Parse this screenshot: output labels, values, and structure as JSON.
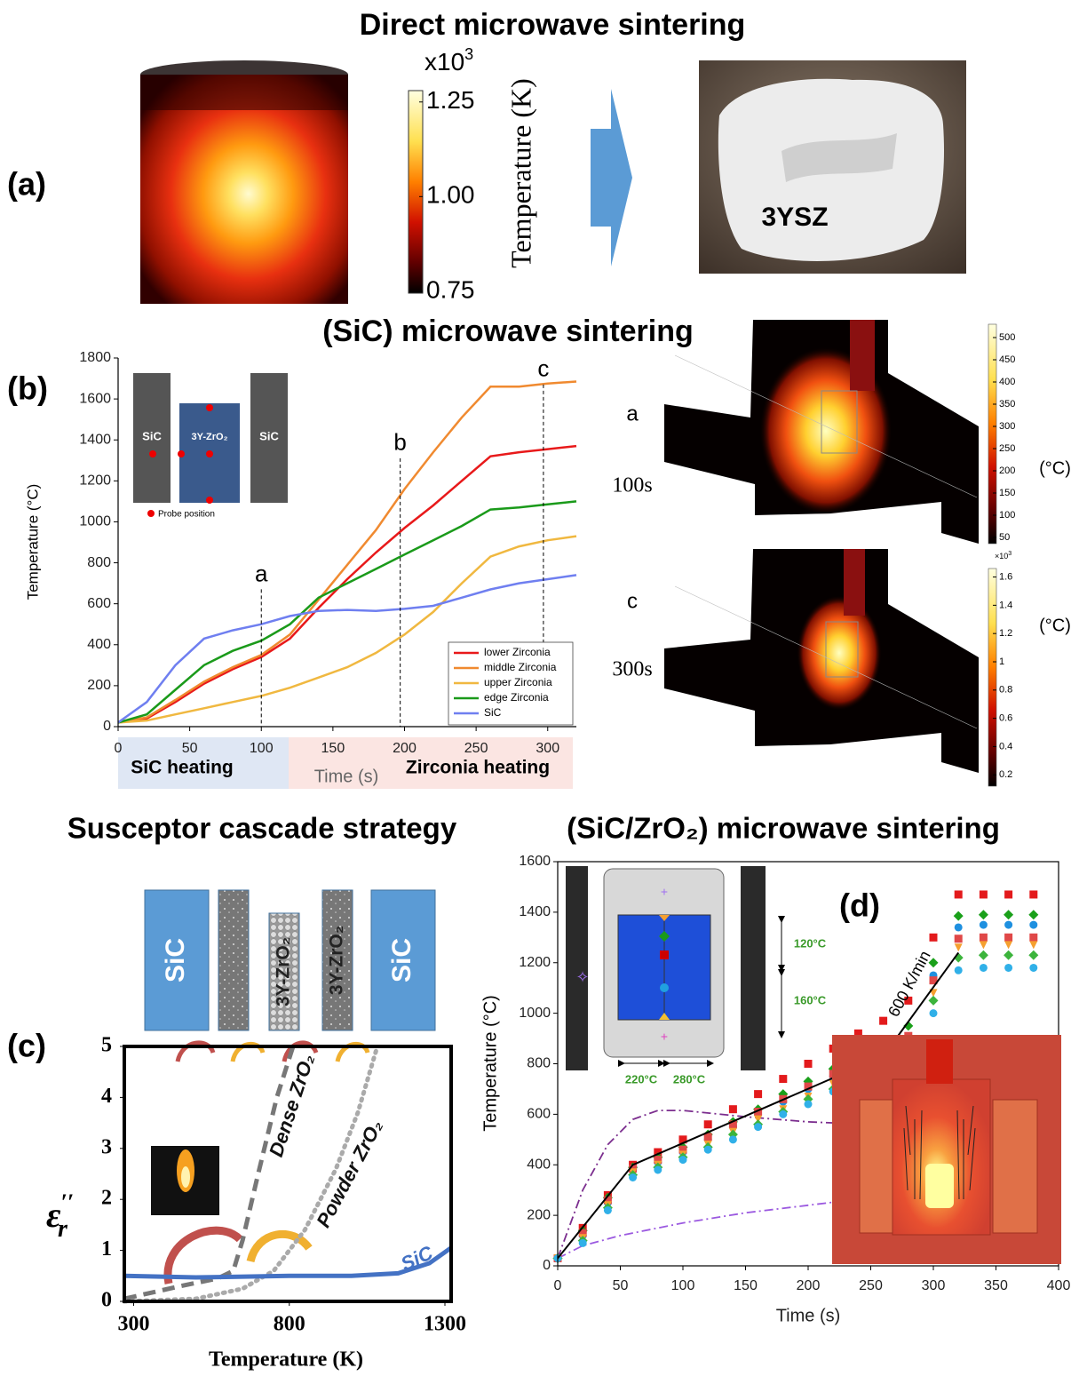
{
  "titles": {
    "direct": "Direct microwave  sintering",
    "sic": "(SiC) microwave  sintering",
    "cascade": "Susceptor cascade strategy",
    "sic_zro2": "(SiC/ZrO₂) microwave  sintering"
  },
  "panel_a": {
    "label": "(a)",
    "sample": "3YSZ",
    "colorbar": {
      "multiplier": "x10",
      "multiplier_exp": "3",
      "label": "Temperature (K)",
      "lim": [
        0.745,
        1.28
      ],
      "ticks": [
        1.25,
        {
          "value": 1,
          "label": "1.00"
        },
        0.75
      ]
    }
  },
  "panel_b": {
    "label": "(b)",
    "phases": [
      "SiC heating",
      "Zirconia heating"
    ],
    "inset": {
      "left": "SiC",
      "middle": "3Y-ZrO₂",
      "right": "SiC",
      "probe": "Probe position"
    },
    "sims": [
      {
        "letter": "a",
        "time": "100s",
        "unit": "(°C)",
        "colorbar": {
          "lim": [
            36,
            530
          ],
          "ticks": [
            50,
            100,
            150,
            200,
            250,
            300,
            350,
            400,
            450,
            500
          ]
        }
      },
      {
        "letter": "c",
        "time": "300s",
        "unit": "(°C)",
        "colorbar": {
          "multiplier": "×10",
          "multiplier_exp": "3",
          "lim": [
            0.12,
            1.66
          ],
          "ticks": [
            0.2,
            0.4,
            0.6,
            0.8,
            1,
            1.2,
            1.4,
            1.6
          ]
        }
      }
    ]
  },
  "panel_c": {
    "label": "(c)",
    "blocks": [
      "SiC",
      "3Y-ZrO₂",
      "3Y-ZrO₂",
      "SiC"
    ]
  },
  "panel_d": {
    "label": "(d)",
    "inset": [
      "120°C",
      "160°C",
      "220°C",
      "280°C"
    ],
    "rate": "600 K/min"
  },
  "chart_data": [
    {
      "type": "line",
      "xlabel": "Time (s)",
      "ylabel": "Temperature (°C)",
      "xlim": [
        0,
        320
      ],
      "ylim": [
        0,
        1800
      ],
      "xticks": [
        0,
        50,
        100,
        150,
        200,
        250,
        300
      ],
      "yticks": [
        0,
        200,
        400,
        600,
        800,
        1000,
        1200,
        1400,
        1600,
        1800
      ],
      "legend": "lower right",
      "x": [
        0,
        20,
        40,
        60,
        80,
        100,
        120,
        140,
        160,
        180,
        200,
        220,
        240,
        260,
        280,
        300,
        320
      ],
      "series": [
        {
          "name": "lower Zirconia",
          "color": "#e8191a",
          "line_style": "solid",
          "values": [
            20,
            40,
            120,
            210,
            280,
            340,
            430,
            580,
            720,
            850,
            970,
            1080,
            1200,
            1320,
            1340,
            1355,
            1370
          ]
        },
        {
          "name": "middle Zirconia",
          "color": "#f08a30",
          "line_style": "solid",
          "values": [
            20,
            45,
            130,
            220,
            290,
            350,
            450,
            620,
            790,
            960,
            1160,
            1340,
            1510,
            1660,
            1660,
            1675,
            1685
          ]
        },
        {
          "name": "upper Zirconia",
          "color": "#f0b840",
          "line_style": "solid",
          "values": [
            20,
            30,
            60,
            90,
            120,
            150,
            190,
            240,
            290,
            360,
            450,
            560,
            700,
            830,
            880,
            910,
            930
          ]
        },
        {
          "name": "edge Zirconia",
          "color": "#1a9a1a",
          "line_style": "solid",
          "values": [
            20,
            60,
            180,
            300,
            370,
            420,
            500,
            630,
            700,
            770,
            840,
            910,
            980,
            1060,
            1070,
            1085,
            1100
          ]
        },
        {
          "name": "SiC",
          "color": "#6f7ff0",
          "line_style": "solid",
          "values": [
            20,
            120,
            300,
            430,
            470,
            500,
            540,
            565,
            570,
            565,
            575,
            590,
            630,
            670,
            700,
            720,
            740
          ]
        }
      ],
      "annotations": [
        {
          "text": "a",
          "x": 100,
          "y": 740
        },
        {
          "text": "b",
          "x": 197,
          "y": 1380
        },
        {
          "text": "c",
          "x": 297,
          "y": 1740
        }
      ]
    },
    {
      "type": "line",
      "xlabel": "Temperature (K)",
      "ylabel": {
        "symbol": "ε",
        "sub": "r",
        "sup": "′′"
      },
      "xlim": [
        270,
        1320
      ],
      "ylim": [
        0,
        5
      ],
      "xticks": [
        300,
        800,
        1300
      ],
      "yticks": [
        0,
        1,
        2,
        3,
        4,
        5
      ],
      "series": [
        {
          "name": "Dense ZrO₂",
          "color": "#777777",
          "line_style": "dashed",
          "x": [
            270,
            450,
            570,
            620,
            650,
            700,
            760,
            812
          ],
          "values": [
            0.05,
            0.3,
            0.45,
            0.6,
            1.2,
            2.5,
            4,
            5
          ]
        },
        {
          "name": "Powder ZrO₂",
          "color": "#aaaaaa",
          "line_style": "dotted",
          "x": [
            270,
            500,
            650,
            750,
            850,
            950,
            1020,
            1083
          ],
          "values": [
            0,
            0.05,
            0.25,
            0.6,
            1.4,
            2.6,
            3.7,
            5
          ]
        },
        {
          "name": "SiC",
          "color": "#4472c4",
          "line_style": "solid",
          "x": [
            270,
            500,
            800,
            1000,
            1150,
            1250,
            1320
          ],
          "values": [
            0.5,
            0.47,
            0.5,
            0.5,
            0.55,
            0.75,
            1.05
          ]
        }
      ]
    },
    {
      "type": "scatter",
      "xlabel": "Time (s)",
      "ylabel": "Temperature (°C)",
      "xlim": [
        0,
        400
      ],
      "ylim": [
        0,
        1600
      ],
      "xticks": [
        0,
        50,
        100,
        150,
        200,
        250,
        300,
        350,
        400
      ],
      "yticks": [
        0,
        200,
        400,
        600,
        800,
        1000,
        1200,
        1400,
        1600
      ],
      "x": [
        0,
        20,
        40,
        60,
        80,
        100,
        120,
        140,
        160,
        180,
        200,
        220,
        240,
        260,
        280,
        300,
        320,
        340,
        360,
        380
      ],
      "series": [
        {
          "color": "#7b2d8e",
          "line_style": "dashdot",
          "x": [
            0,
            20,
            40,
            60,
            80,
            100,
            150,
            200,
            250,
            280
          ],
          "values": [
            30,
            300,
            480,
            580,
            615,
            615,
            590,
            570,
            560,
            540
          ]
        },
        {
          "color": "#9b59e0",
          "line_style": "dashdot",
          "x": [
            0,
            20,
            50,
            100,
            150,
            200,
            250,
            280
          ],
          "values": [
            30,
            80,
            120,
            170,
            210,
            240,
            270,
            300
          ]
        },
        {
          "color": "#e31a1c",
          "marker": "square",
          "values": [
            30,
            150,
            280,
            400,
            450,
            500,
            560,
            620,
            680,
            740,
            800,
            860,
            920,
            970,
            1050,
            1300,
            1470,
            1470,
            1470,
            1470
          ]
        },
        {
          "color": "#1aa01a",
          "marker": "diamond",
          "values": [
            30,
            140,
            270,
            390,
            430,
            470,
            520,
            570,
            620,
            680,
            730,
            780,
            830,
            880,
            950,
            1200,
            1385,
            1390,
            1390,
            1390
          ]
        },
        {
          "color": "#1e90e0",
          "marker": "circle",
          "values": [
            30,
            120,
            250,
            380,
            410,
            450,
            500,
            550,
            600,
            650,
            700,
            750,
            790,
            840,
            900,
            1150,
            1340,
            1350,
            1350,
            1350
          ]
        },
        {
          "color": "#e04848",
          "marker": "square",
          "values": [
            30,
            130,
            260,
            385,
            420,
            460,
            510,
            560,
            610,
            660,
            710,
            760,
            810,
            860,
            910,
            1130,
            1295,
            1300,
            1300,
            1300
          ]
        },
        {
          "color": "#f5a030",
          "marker": "triangle",
          "values": [
            30,
            110,
            240,
            370,
            400,
            440,
            480,
            530,
            580,
            620,
            670,
            720,
            770,
            810,
            850,
            1080,
            1260,
            1270,
            1270,
            1270
          ]
        },
        {
          "color": "#3cb43c",
          "marker": "diamond",
          "values": [
            30,
            100,
            230,
            360,
            390,
            430,
            470,
            520,
            560,
            610,
            660,
            700,
            750,
            800,
            840,
            1050,
            1220,
            1230,
            1230,
            1230
          ]
        },
        {
          "color": "#30b0e8",
          "marker": "circle",
          "values": [
            30,
            90,
            220,
            350,
            380,
            420,
            460,
            500,
            550,
            600,
            640,
            690,
            740,
            790,
            820,
            1000,
            1170,
            1180,
            1180,
            1180
          ]
        },
        {
          "color": "#000000",
          "line_style": "solid",
          "x": [
            0,
            60,
            260,
            320
          ],
          "values": [
            30,
            400,
            830,
            1240
          ]
        }
      ]
    }
  ]
}
